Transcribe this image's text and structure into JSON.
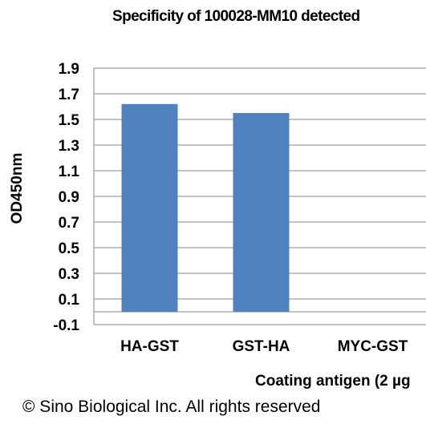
{
  "chart_data": {
    "type": "bar",
    "title": "Specificity of 100028-MM10  detected",
    "ylabel": "OD450nm",
    "xlabel": "Coating antigen (2 µg",
    "categories": [
      "HA-GST",
      "GST-HA",
      "MYC-GST"
    ],
    "values": [
      1.62,
      1.55,
      0
    ],
    "ylim": [
      -0.1,
      1.9
    ],
    "yticks": [
      "1.9",
      "1.7",
      "1.5",
      "1.3",
      "1.1",
      "0.9",
      "0.7",
      "0.5",
      "0.3",
      "0.1",
      "-0.1"
    ],
    "grid": true,
    "bar_color": "#4f81bd",
    "grid_color": "#868686"
  },
  "footer": {
    "copyright": "© Sino Biological Inc. All rights reserved"
  }
}
